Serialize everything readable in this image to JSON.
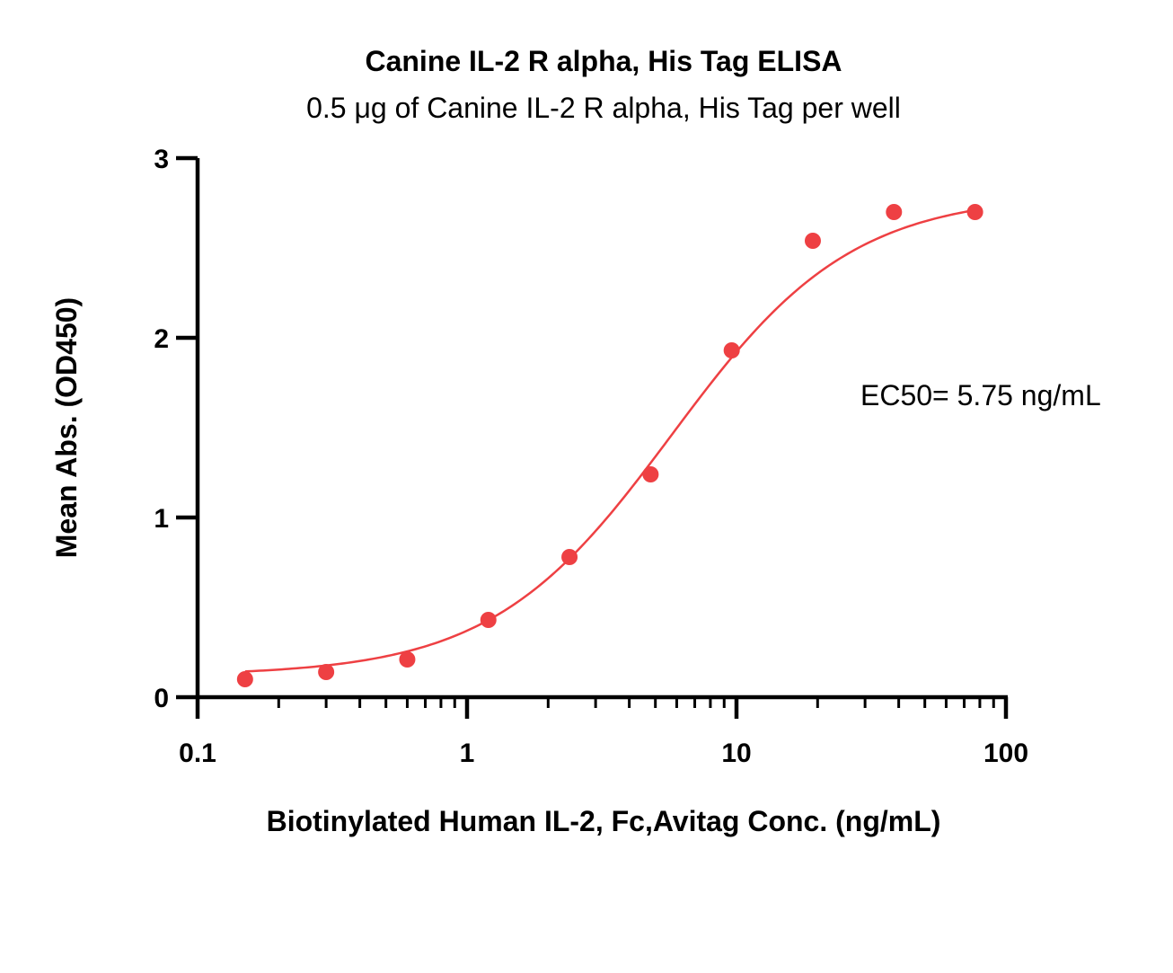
{
  "chart_data": {
    "type": "scatter",
    "title": "Canine IL-2 R alpha, His Tag ELISA",
    "subtitle": "0.5 μg of Canine IL-2 R alpha, His Tag per well",
    "xlabel": "Biotinylated Human IL-2, Fc,Avitag Conc. (ng/mL)",
    "ylabel": "Mean Abs. (OD450)",
    "x_scale": "log",
    "xlim": [
      0.1,
      100
    ],
    "ylim": [
      0,
      3
    ],
    "x_ticks": [
      0.1,
      1,
      10,
      100
    ],
    "x_tick_labels": [
      "0.1",
      "1",
      "10",
      "100"
    ],
    "y_ticks": [
      0,
      1,
      2,
      3
    ],
    "y_tick_labels": [
      "0",
      "1",
      "2",
      "3"
    ],
    "grid": false,
    "annotation": "EC50= 5.75 ng/mL",
    "series": [
      {
        "x": [
          0.15,
          0.3,
          0.6,
          1.2,
          2.4,
          4.8,
          9.6,
          19.2,
          38.4,
          76.8
        ],
        "y": [
          0.1,
          0.14,
          0.21,
          0.43,
          0.78,
          1.24,
          1.93,
          2.54,
          2.7,
          2.7
        ],
        "color": "#ee4043"
      }
    ],
    "fit": {
      "model": "4PL",
      "bottom": 0.12,
      "top": 2.8,
      "ec50": 5.75,
      "hill": 1.3,
      "color": "#ee4043"
    }
  }
}
